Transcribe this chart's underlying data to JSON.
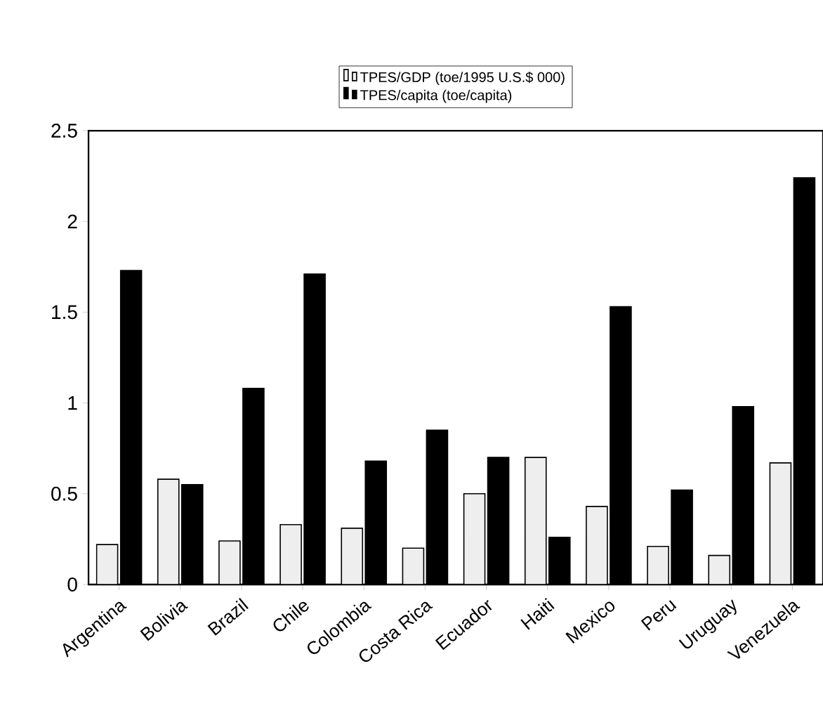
{
  "chart_data": {
    "type": "bar",
    "categories": [
      "Argentina",
      "Bolivia",
      "Brazil",
      "Chile",
      "Colombia",
      "Costa Rica",
      "Ecuador",
      "Haiti",
      "Mexico",
      "Peru",
      "Uruguay",
      "Venezuela"
    ],
    "series": [
      {
        "name": "TPES/GDP (toe/1995 U.S.$ 000)",
        "color": "#eeeeee",
        "values": [
          0.22,
          0.58,
          0.24,
          0.33,
          0.31,
          0.2,
          0.5,
          0.7,
          0.43,
          0.21,
          0.16,
          0.67
        ]
      },
      {
        "name": "TPES/capita (toe/capita)",
        "color": "#000000",
        "values": [
          1.73,
          0.55,
          1.08,
          1.71,
          0.68,
          0.85,
          0.7,
          0.26,
          1.53,
          0.52,
          0.98,
          2.24
        ]
      }
    ],
    "ylim": [
      0,
      2.5
    ],
    "yticks": [
      0,
      0.5,
      1,
      1.5,
      2,
      2.5
    ],
    "grid": false,
    "legend": "top"
  }
}
